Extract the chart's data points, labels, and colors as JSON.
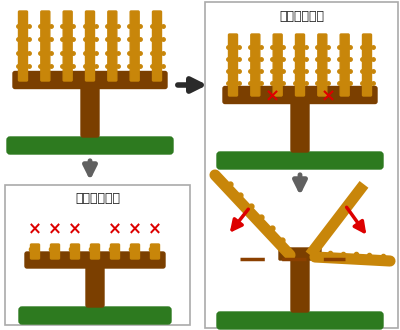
{
  "bg_color": "#ffffff",
  "brown_trunk": "#7B3F00",
  "brown_cane": "#C8860A",
  "green": "#2D7A1F",
  "red": "#DD0000",
  "gray": "#606060",
  "black": "#1a1a1a",
  "orange_brown": "#C8860A",
  "title_long": "【長梗剪定】",
  "title_short": "【短梗剪定】"
}
